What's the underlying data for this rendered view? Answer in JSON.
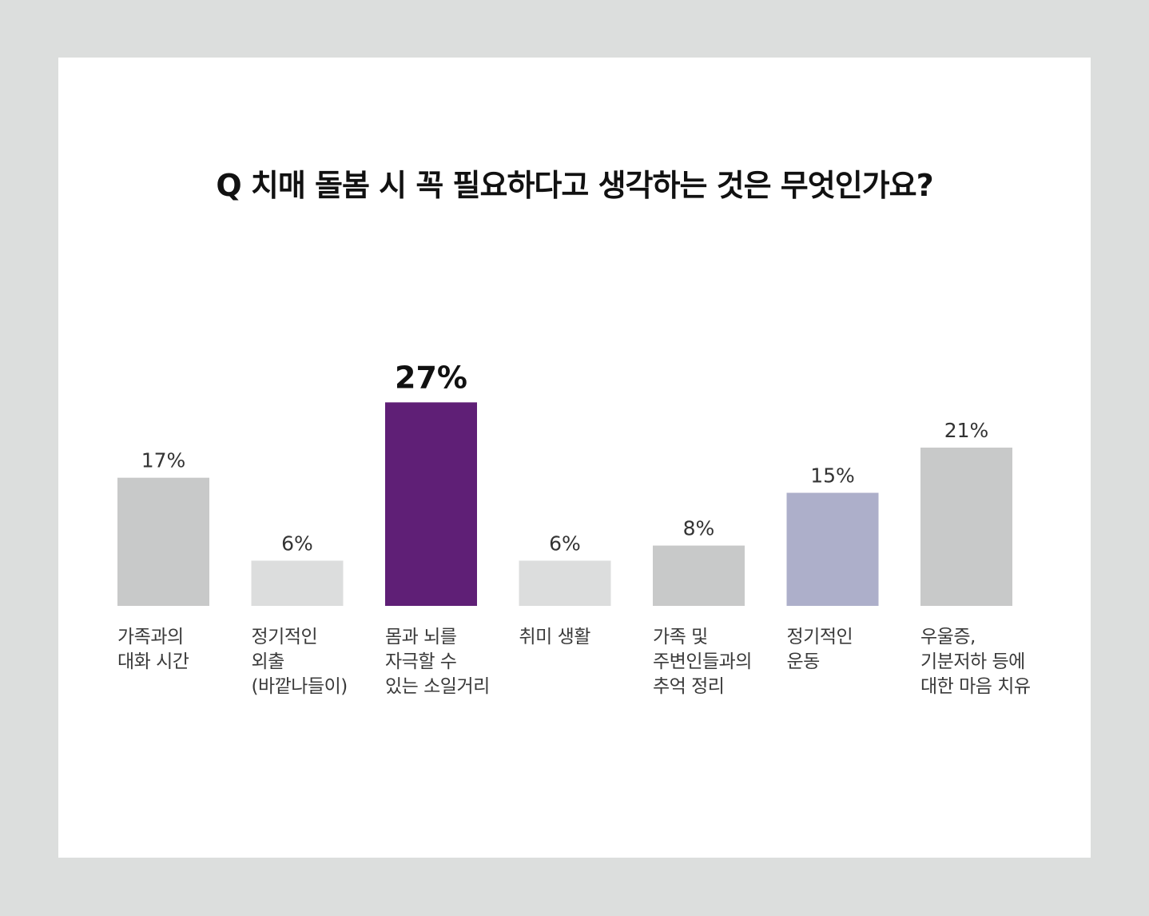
{
  "title": "Q 치매 돌봄 시 꼭 필요하다고 생각하는 것은 무엇인가요?",
  "chart_data": {
    "type": "bar",
    "title": "Q 치매 돌봄 시 꼭 필요하다고 생각하는 것은 무엇인가요?",
    "categories": [
      "가족과의\n대화 시간",
      "정기적인\n외출\n(바깥나들이)",
      "몸과 뇌를\n자극할 수\n있는 소일거리",
      "취미 생활",
      "가족 및\n주변인들과의\n추억 정리",
      "정기적인\n운동",
      "우울증,\n기분저하 등에\n대한 마음 치유"
    ],
    "values": [
      17,
      6,
      27,
      6,
      8,
      15,
      21
    ],
    "value_labels": [
      "17%",
      "6%",
      "27%",
      "6%",
      "8%",
      "15%",
      "21%"
    ],
    "unit": "%",
    "colors": [
      "#c8c9c9",
      "#dcdddd",
      "#5f1f76",
      "#dcdddd",
      "#c8c9c9",
      "#adafca",
      "#c8c9c9"
    ],
    "highlight_index": 2,
    "xlabel": "",
    "ylabel": "",
    "grid": false,
    "legend": "none"
  }
}
